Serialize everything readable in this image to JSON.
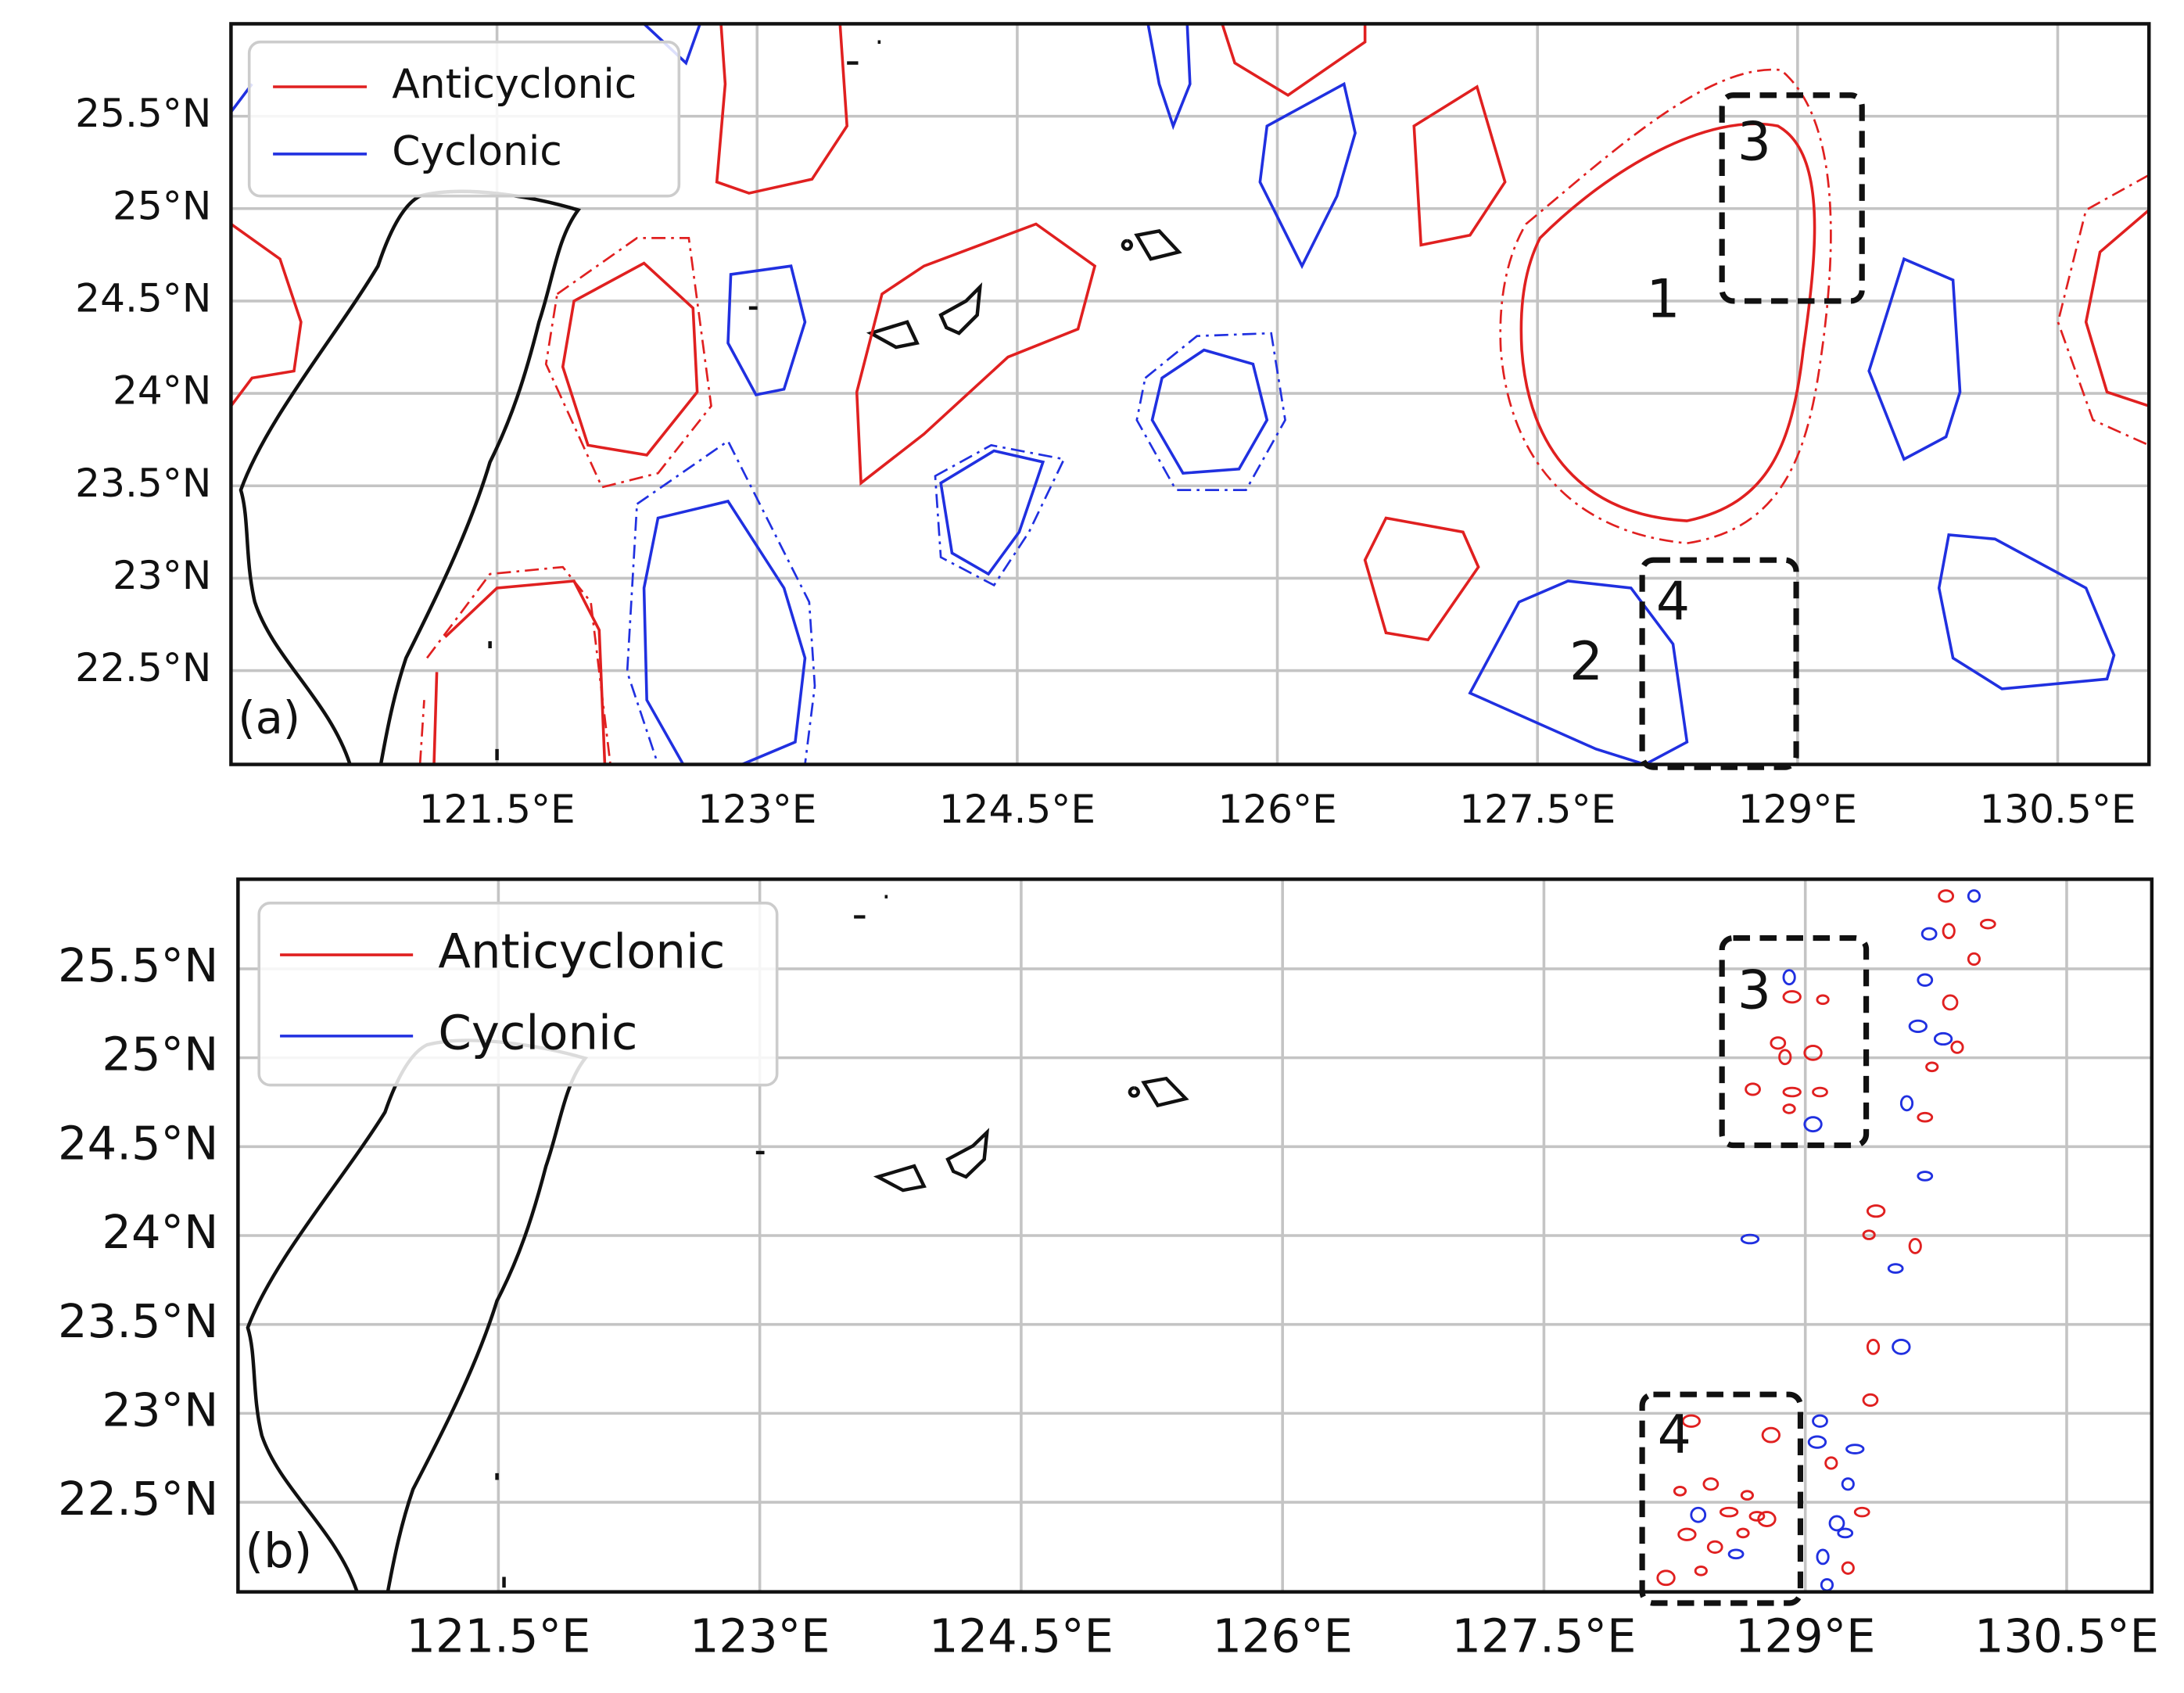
{
  "panels": [
    {
      "label": "(a)",
      "legend": [
        "Anticyclonic",
        "Cyclonic"
      ],
      "xticks": [
        "121.5°E",
        "123°E",
        "124.5°E",
        "126°E",
        "127.5°E",
        "129°E",
        "130.5°E"
      ],
      "yticks": [
        "25.5°N",
        "25°N",
        "24.5°N",
        "24°N",
        "23.5°N",
        "23°N",
        "22.5°N"
      ],
      "annotations": [
        "3",
        "1",
        "4",
        "2"
      ]
    },
    {
      "label": "(b)",
      "legend": [
        "Anticyclonic",
        "Cyclonic"
      ],
      "xticks": [
        "121.5°E",
        "123°E",
        "124.5°E",
        "126°E",
        "127.5°E",
        "129°E",
        "130.5°E"
      ],
      "yticks": [
        "25.5°N",
        "25°N",
        "24.5°N",
        "24°N",
        "23.5°N",
        "23°N",
        "22.5°N"
      ],
      "annotations": [
        "3",
        "4"
      ]
    }
  ]
}
